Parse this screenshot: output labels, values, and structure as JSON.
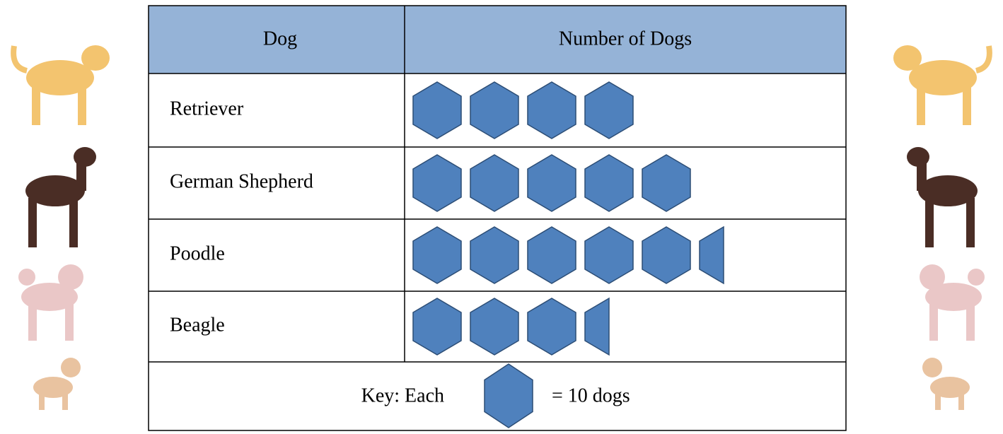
{
  "chart_data": {
    "type": "pictograph",
    "columns": [
      "Dog",
      "Number of Dogs"
    ],
    "categories": [
      "Retriever",
      "German Shepherd",
      "Poodle",
      "Beagle"
    ],
    "values": [
      40,
      50,
      55,
      35
    ],
    "color": "#4f81bd",
    "header_color": "#95b3d7",
    "key": {
      "prefix": "Key: Each",
      "suffix": "= 10 dogs",
      "value": 10
    }
  }
}
